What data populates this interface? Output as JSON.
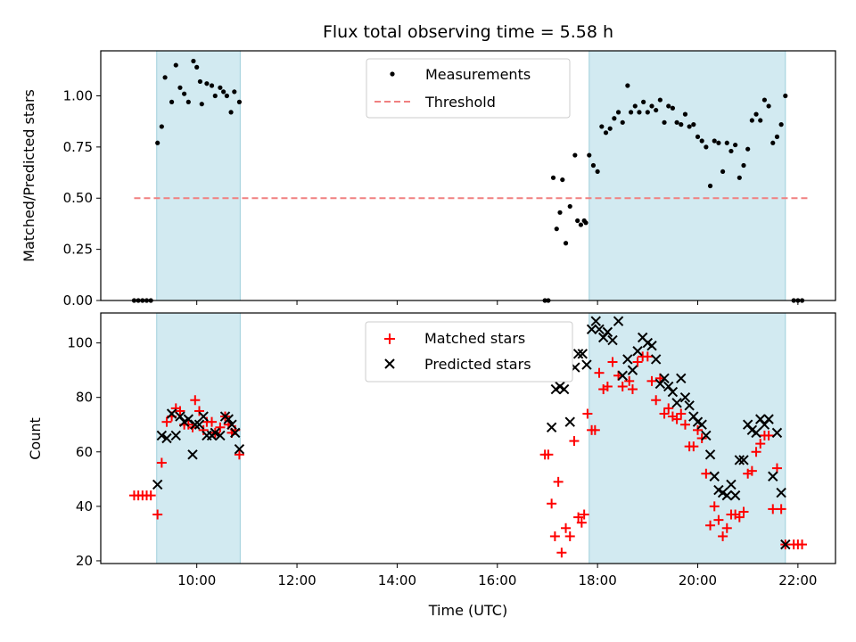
{
  "chart_data": [
    {
      "type": "scatter",
      "title": "Flux total observing time = 5.58 h",
      "xlabel": "",
      "ylabel": "Matched/Predicted stars",
      "xlim": [
        "08:05",
        "22:45"
      ],
      "ylim": [
        0,
        1.22
      ],
      "y_ticks": [
        "0.00",
        "0.25",
        "0.50",
        "0.75",
        "1.00"
      ],
      "legend_position": "upper center",
      "shaded_intervals": [
        [
          "09:12",
          "10:52"
        ],
        [
          "17:50",
          "21:45"
        ]
      ],
      "threshold": {
        "name": "Threshold",
        "value": 0.5,
        "x_range": [
          "08:45",
          "22:15"
        ],
        "color": "#f08080"
      },
      "series": [
        {
          "name": "Measurements",
          "color": "#000000",
          "marker": "dot",
          "points": [
            [
              "08:45",
              0.0
            ],
            [
              "08:50",
              0.0
            ],
            [
              "08:55",
              0.0
            ],
            [
              "09:00",
              0.0
            ],
            [
              "09:05",
              0.0
            ],
            [
              "09:13",
              0.77
            ],
            [
              "09:18",
              0.85
            ],
            [
              "09:22",
              1.09
            ],
            [
              "09:30",
              0.97
            ],
            [
              "09:35",
              1.15
            ],
            [
              "09:40",
              1.04
            ],
            [
              "09:45",
              1.01
            ],
            [
              "09:50",
              0.97
            ],
            [
              "09:56",
              1.17
            ],
            [
              "10:00",
              1.14
            ],
            [
              "10:04",
              1.07
            ],
            [
              "10:06",
              0.96
            ],
            [
              "10:12",
              1.06
            ],
            [
              "10:18",
              1.05
            ],
            [
              "10:22",
              1.0
            ],
            [
              "10:28",
              1.04
            ],
            [
              "10:32",
              1.02
            ],
            [
              "10:36",
              1.0
            ],
            [
              "10:41",
              0.92
            ],
            [
              "10:45",
              1.02
            ],
            [
              "10:51",
              0.97
            ],
            [
              "16:57",
              0.0
            ],
            [
              "17:01",
              0.0
            ],
            [
              "17:07",
              0.6
            ],
            [
              "17:11",
              0.35
            ],
            [
              "17:15",
              0.43
            ],
            [
              "17:18",
              0.59
            ],
            [
              "17:22",
              0.28
            ],
            [
              "17:27",
              0.46
            ],
            [
              "17:33",
              0.71
            ],
            [
              "17:36",
              0.39
            ],
            [
              "17:40",
              0.37
            ],
            [
              "17:44",
              0.39
            ],
            [
              "17:46",
              0.38
            ],
            [
              "17:50",
              0.71
            ],
            [
              "17:55",
              0.66
            ],
            [
              "18:00",
              0.63
            ],
            [
              "18:05",
              0.85
            ],
            [
              "18:10",
              0.82
            ],
            [
              "18:15",
              0.84
            ],
            [
              "18:20",
              0.89
            ],
            [
              "18:25",
              0.92
            ],
            [
              "18:30",
              0.87
            ],
            [
              "18:36",
              1.05
            ],
            [
              "18:40",
              0.92
            ],
            [
              "18:45",
              0.95
            ],
            [
              "18:50",
              0.92
            ],
            [
              "18:55",
              0.97
            ],
            [
              "19:00",
              0.92
            ],
            [
              "19:05",
              0.95
            ],
            [
              "19:10",
              0.93
            ],
            [
              "19:15",
              0.98
            ],
            [
              "19:20",
              0.87
            ],
            [
              "19:25",
              0.95
            ],
            [
              "19:30",
              0.94
            ],
            [
              "19:35",
              0.87
            ],
            [
              "19:40",
              0.86
            ],
            [
              "19:45",
              0.91
            ],
            [
              "19:50",
              0.85
            ],
            [
              "19:55",
              0.86
            ],
            [
              "20:00",
              0.8
            ],
            [
              "20:05",
              0.78
            ],
            [
              "20:10",
              0.75
            ],
            [
              "20:15",
              0.56
            ],
            [
              "20:20",
              0.78
            ],
            [
              "20:25",
              0.77
            ],
            [
              "20:30",
              0.63
            ],
            [
              "20:35",
              0.77
            ],
            [
              "20:40",
              0.73
            ],
            [
              "20:45",
              0.76
            ],
            [
              "20:50",
              0.6
            ],
            [
              "20:55",
              0.66
            ],
            [
              "21:00",
              0.74
            ],
            [
              "21:05",
              0.88
            ],
            [
              "21:10",
              0.91
            ],
            [
              "21:15",
              0.88
            ],
            [
              "21:20",
              0.98
            ],
            [
              "21:25",
              0.95
            ],
            [
              "21:30",
              0.77
            ],
            [
              "21:35",
              0.8
            ],
            [
              "21:40",
              0.86
            ],
            [
              "21:45",
              1.0
            ],
            [
              "21:55",
              0.0
            ],
            [
              "22:00",
              0.0
            ],
            [
              "22:05",
              0.0
            ]
          ]
        }
      ]
    },
    {
      "type": "scatter",
      "title": "",
      "xlabel": "Time (UTC)",
      "ylabel": "Count",
      "xlim": [
        "08:05",
        "22:45"
      ],
      "ylim": [
        19,
        111
      ],
      "y_ticks": [
        "20",
        "40",
        "60",
        "80",
        "100"
      ],
      "x_ticks": [
        "10:00",
        "12:00",
        "14:00",
        "16:00",
        "18:00",
        "20:00",
        "22:00"
      ],
      "legend_position": "upper center",
      "shaded_intervals": [
        [
          "09:12",
          "10:52"
        ],
        [
          "17:50",
          "21:45"
        ]
      ],
      "series": [
        {
          "name": "Matched stars",
          "color": "#ff0000",
          "marker": "plus",
          "points": [
            [
              "08:45",
              44
            ],
            [
              "08:50",
              44
            ],
            [
              "08:55",
              44
            ],
            [
              "09:00",
              44
            ],
            [
              "09:05",
              44
            ],
            [
              "09:13",
              37
            ],
            [
              "09:18",
              56
            ],
            [
              "09:24",
              71
            ],
            [
              "09:30",
              73
            ],
            [
              "09:35",
              76
            ],
            [
              "09:40",
              75
            ],
            [
              "09:45",
              70
            ],
            [
              "09:50",
              70
            ],
            [
              "09:55",
              69
            ],
            [
              "09:58",
              79
            ],
            [
              "10:03",
              75
            ],
            [
              "10:08",
              68
            ],
            [
              "10:12",
              71
            ],
            [
              "10:18",
              71
            ],
            [
              "10:22",
              67
            ],
            [
              "10:28",
              69
            ],
            [
              "10:34",
              73
            ],
            [
              "10:38",
              70
            ],
            [
              "10:42",
              67
            ],
            [
              "10:46",
              68
            ],
            [
              "10:51",
              59
            ],
            [
              "16:57",
              59
            ],
            [
              "17:01",
              59
            ],
            [
              "17:05",
              41
            ],
            [
              "17:09",
              29
            ],
            [
              "17:13",
              49
            ],
            [
              "17:17",
              23
            ],
            [
              "17:22",
              32
            ],
            [
              "17:27",
              29
            ],
            [
              "17:32",
              64
            ],
            [
              "17:37",
              36
            ],
            [
              "17:41",
              34
            ],
            [
              "17:44",
              37
            ],
            [
              "17:48",
              74
            ],
            [
              "17:53",
              68
            ],
            [
              "17:57",
              68
            ],
            [
              "18:02",
              89
            ],
            [
              "18:07",
              83
            ],
            [
              "18:12",
              84
            ],
            [
              "18:18",
              93
            ],
            [
              "18:25",
              88
            ],
            [
              "18:30",
              84
            ],
            [
              "18:38",
              86
            ],
            [
              "18:42",
              83
            ],
            [
              "18:48",
              93
            ],
            [
              "18:54",
              95
            ],
            [
              "19:00",
              95
            ],
            [
              "19:05",
              86
            ],
            [
              "19:10",
              79
            ],
            [
              "19:15",
              87
            ],
            [
              "19:20",
              74
            ],
            [
              "19:25",
              76
            ],
            [
              "19:30",
              73
            ],
            [
              "19:35",
              72
            ],
            [
              "19:40",
              74
            ],
            [
              "19:45",
              70
            ],
            [
              "19:50",
              62
            ],
            [
              "19:55",
              62
            ],
            [
              "20:00",
              68
            ],
            [
              "20:05",
              65
            ],
            [
              "20:10",
              52
            ],
            [
              "20:15",
              33
            ],
            [
              "20:20",
              40
            ],
            [
              "20:25",
              35
            ],
            [
              "20:30",
              29
            ],
            [
              "20:35",
              32
            ],
            [
              "20:40",
              37
            ],
            [
              "20:45",
              37
            ],
            [
              "20:50",
              36
            ],
            [
              "20:55",
              38
            ],
            [
              "21:00",
              52
            ],
            [
              "21:05",
              53
            ],
            [
              "21:10",
              60
            ],
            [
              "21:15",
              63
            ],
            [
              "21:20",
              66
            ],
            [
              "21:25",
              66
            ],
            [
              "21:30",
              39
            ],
            [
              "21:35",
              54
            ],
            [
              "21:40",
              39
            ],
            [
              "21:45",
              26
            ],
            [
              "21:55",
              26
            ],
            [
              "22:00",
              26
            ],
            [
              "22:05",
              26
            ]
          ]
        },
        {
          "name": "Predicted stars",
          "color": "#000000",
          "marker": "x",
          "points": [
            [
              "09:13",
              48
            ],
            [
              "09:18",
              66
            ],
            [
              "09:24",
              65
            ],
            [
              "09:30",
              74
            ],
            [
              "09:35",
              66
            ],
            [
              "09:40",
              73
            ],
            [
              "09:45",
              71
            ],
            [
              "09:50",
              72
            ],
            [
              "09:55",
              59
            ],
            [
              "09:58",
              70
            ],
            [
              "10:03",
              70
            ],
            [
              "10:08",
              73
            ],
            [
              "10:12",
              66
            ],
            [
              "10:18",
              66
            ],
            [
              "10:22",
              67
            ],
            [
              "10:28",
              66
            ],
            [
              "10:34",
              73
            ],
            [
              "10:38",
              72
            ],
            [
              "10:42",
              70
            ],
            [
              "10:46",
              67
            ],
            [
              "10:51",
              61
            ],
            [
              "17:05",
              69
            ],
            [
              "17:10",
              83
            ],
            [
              "17:15",
              84
            ],
            [
              "17:20",
              83
            ],
            [
              "17:27",
              71
            ],
            [
              "17:33",
              91
            ],
            [
              "17:37",
              96
            ],
            [
              "17:42",
              96
            ],
            [
              "17:47",
              92
            ],
            [
              "17:53",
              105
            ],
            [
              "17:58",
              108
            ],
            [
              "18:02",
              105
            ],
            [
              "18:07",
              102
            ],
            [
              "18:12",
              104
            ],
            [
              "18:18",
              101
            ],
            [
              "18:25",
              108
            ],
            [
              "18:30",
              88
            ],
            [
              "18:36",
              94
            ],
            [
              "18:42",
              90
            ],
            [
              "18:48",
              97
            ],
            [
              "18:54",
              102
            ],
            [
              "19:00",
              100
            ],
            [
              "19:05",
              99
            ],
            [
              "19:10",
              94
            ],
            [
              "19:15",
              85
            ],
            [
              "19:20",
              87
            ],
            [
              "19:25",
              84
            ],
            [
              "19:30",
              82
            ],
            [
              "19:35",
              78
            ],
            [
              "19:40",
              87
            ],
            [
              "19:45",
              80
            ],
            [
              "19:50",
              77
            ],
            [
              "19:55",
              73
            ],
            [
              "20:00",
              71
            ],
            [
              "20:05",
              70
            ],
            [
              "20:10",
              66
            ],
            [
              "20:15",
              59
            ],
            [
              "20:20",
              51
            ],
            [
              "20:25",
              46
            ],
            [
              "20:30",
              45
            ],
            [
              "20:35",
              44
            ],
            [
              "20:40",
              48
            ],
            [
              "20:45",
              44
            ],
            [
              "20:50",
              57
            ],
            [
              "20:55",
              57
            ],
            [
              "21:00",
              70
            ],
            [
              "21:05",
              68
            ],
            [
              "21:10",
              67
            ],
            [
              "21:15",
              72
            ],
            [
              "21:20",
              70
            ],
            [
              "21:25",
              72
            ],
            [
              "21:30",
              51
            ],
            [
              "21:35",
              67
            ],
            [
              "21:40",
              45
            ],
            [
              "21:45",
              26
            ]
          ]
        }
      ]
    }
  ],
  "colors": {
    "shade": "#add8e6",
    "axes": "#000000",
    "background": "#ffffff"
  }
}
